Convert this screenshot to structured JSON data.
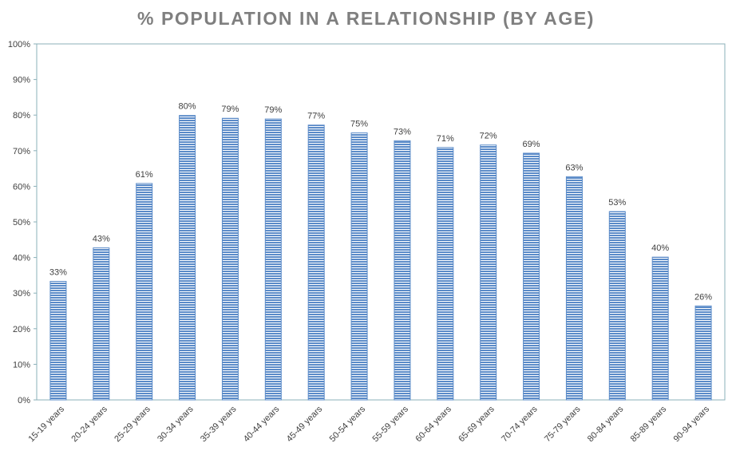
{
  "chart_data": {
    "type": "bar",
    "title": "% POPULATION IN A RELATIONSHIP (BY AGE)",
    "xlabel": "",
    "ylabel": "",
    "ylim": [
      0,
      100
    ],
    "yticks": [
      "0%",
      "10%",
      "20%",
      "30%",
      "40%",
      "50%",
      "60%",
      "70%",
      "80%",
      "90%",
      "100%"
    ],
    "categories": [
      "15-19 years",
      "20-24 years",
      "25-29 years",
      "30-34 years",
      "35-39 years",
      "40-44 years",
      "45-49 years",
      "50-54 years",
      "55-59 years",
      "60-64 years",
      "65-69 years",
      "70-74 years",
      "75-79 years",
      "80-84 years",
      "85-89 years",
      "90-94 years"
    ],
    "values": [
      33.3,
      42.7,
      60.8,
      79.9,
      79.1,
      78.9,
      77.2,
      75.0,
      72.8,
      70.9,
      71.6,
      69.3,
      62.7,
      52.9,
      40.1,
      26.4
    ],
    "data_labels": [
      "33%",
      "43%",
      "61%",
      "80%",
      "79%",
      "79%",
      "77%",
      "75%",
      "73%",
      "71%",
      "72%",
      "69%",
      "63%",
      "53%",
      "40%",
      "26%"
    ],
    "grid": false,
    "bar_color": "#5b8bc8",
    "bar_stripe_color": "#ffffff",
    "border_color": "#8bb0b8",
    "label_color": "#404040"
  }
}
